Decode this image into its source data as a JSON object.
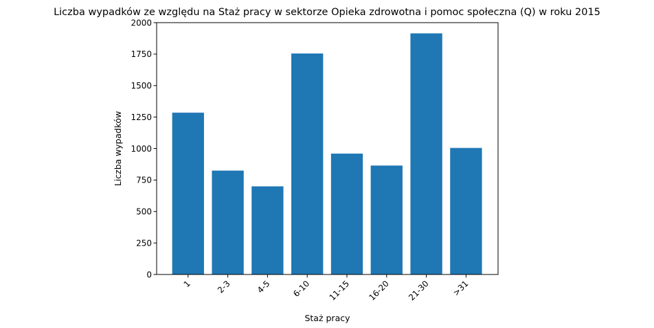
{
  "chart_data": {
    "type": "bar",
    "title": "Liczba wypadków ze względu na Staż pracy w sektorze Opieka zdrowotna i pomoc społeczna  (Q)   w roku 2015",
    "xlabel": "Staż pracy",
    "ylabel": "Liczba wypadków",
    "categories": [
      "1",
      "2-3",
      "4-5",
      "6-10",
      "11-15",
      "16-20",
      "21-30",
      ">31"
    ],
    "values": [
      1285,
      825,
      700,
      1755,
      960,
      865,
      1915,
      1005
    ],
    "ylim": [
      0,
      2000
    ],
    "yticks": [
      0,
      250,
      500,
      750,
      1000,
      1250,
      1500,
      1750,
      2000
    ],
    "ytick_labels": [
      "0",
      "250",
      "500",
      "750",
      "1000",
      "1250",
      "1500",
      "1750",
      "2000"
    ],
    "grid": false,
    "bar_color": "#1f77b4"
  }
}
